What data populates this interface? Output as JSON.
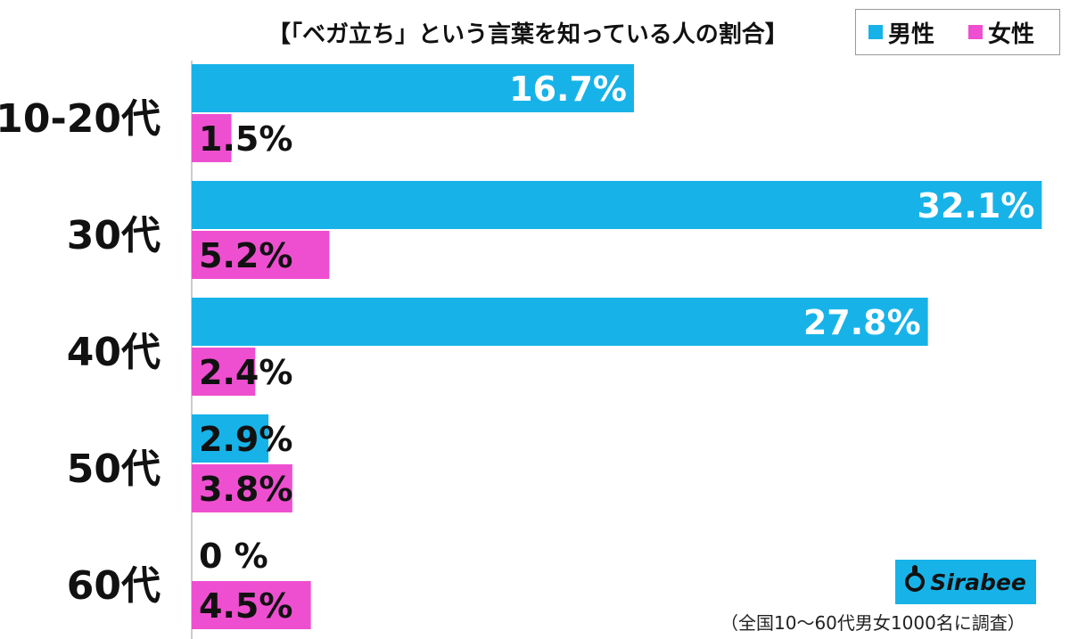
{
  "chart_data": {
    "type": "bar",
    "orientation": "horizontal",
    "title": "【「ベガ立ち」という言葉を知っている人の割合】",
    "categories": [
      "10-20代",
      "30代",
      "40代",
      "50代",
      "60代"
    ],
    "series": [
      {
        "name": "男性",
        "color": "#17b3e8",
        "values": [
          16.7,
          32.1,
          27.8,
          2.9,
          0
        ]
      },
      {
        "name": "女性",
        "color": "#ee4fd0",
        "values": [
          1.5,
          5.2,
          2.4,
          3.8,
          4.5
        ]
      }
    ],
    "data_labels": [
      [
        "16.7%",
        "1.5%"
      ],
      [
        "32.1%",
        "5.2%"
      ],
      [
        "27.8%",
        "2.4%"
      ],
      [
        "2.9%",
        "3.8%"
      ],
      [
        "0 %",
        "4.5%"
      ]
    ],
    "xlim": [
      0,
      33
    ],
    "grid": false,
    "legend_position": "top-right"
  },
  "legend": {
    "male_label": "男性",
    "female_label": "女性"
  },
  "logo_text": "Sirabee",
  "footnote": "（全国10〜60代男女1000名に調査）"
}
